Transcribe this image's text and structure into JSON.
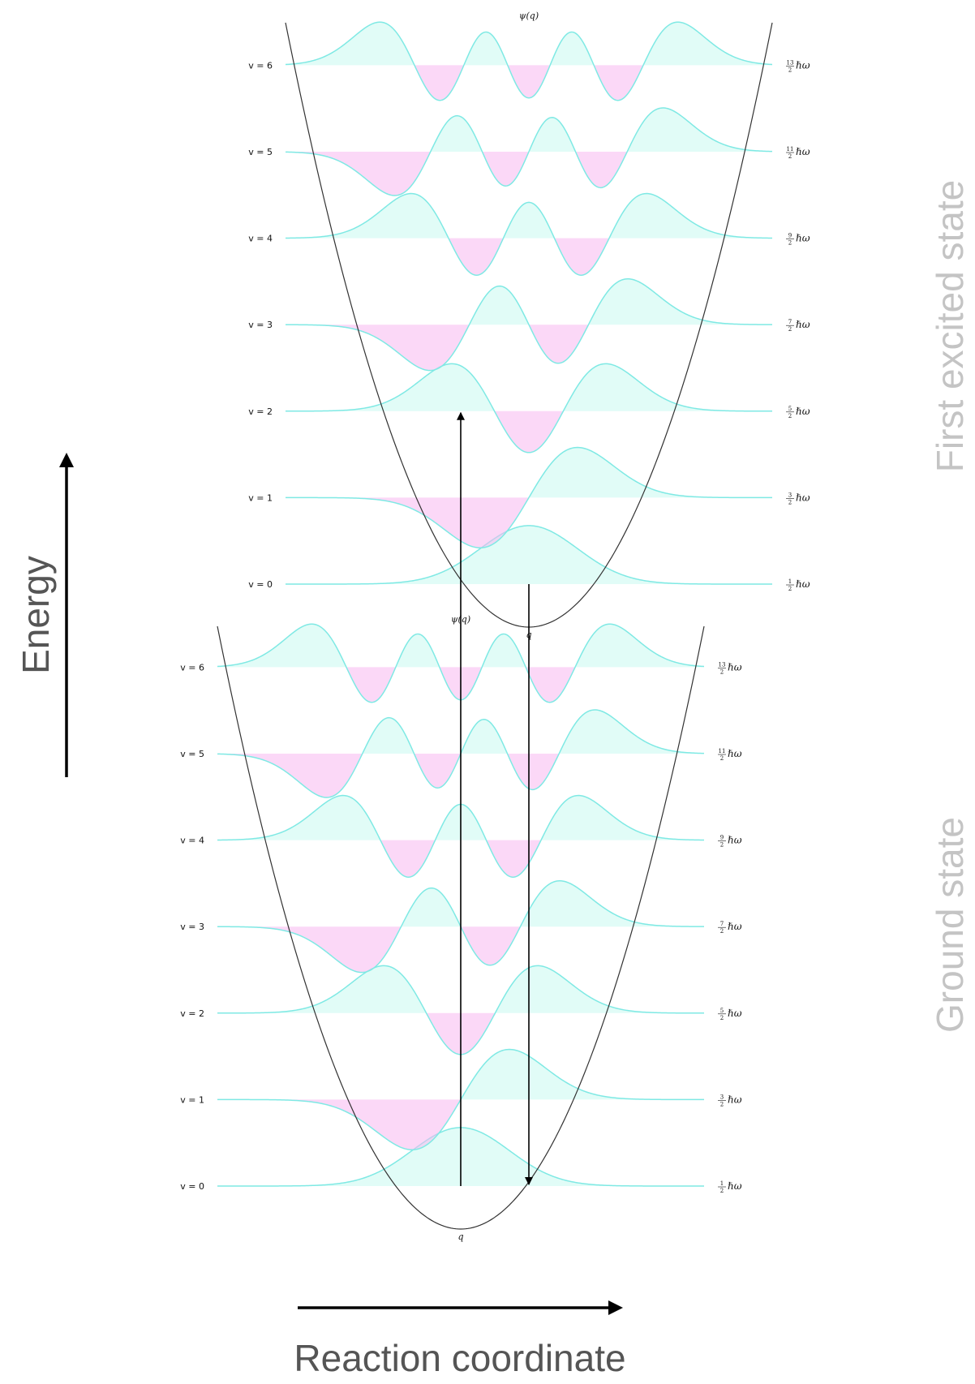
{
  "axes": {
    "energy_label": "Energy",
    "reaction_label": "Reaction coordinate"
  },
  "states": [
    {
      "id": "excited",
      "name": "First excited state",
      "psi_label": "ψ(q)",
      "q_label": "q",
      "levels": [
        {
          "v": 0,
          "label": "v = 0",
          "num": "1",
          "den": "2",
          "unit": "ℏω"
        },
        {
          "v": 1,
          "label": "v = 1",
          "num": "3",
          "den": "2",
          "unit": "ℏω"
        },
        {
          "v": 2,
          "label": "v = 2",
          "num": "5",
          "den": "2",
          "unit": "ℏω"
        },
        {
          "v": 3,
          "label": "v = 3",
          "num": "7",
          "den": "2",
          "unit": "ℏω"
        },
        {
          "v": 4,
          "label": "v = 4",
          "num": "9",
          "den": "2",
          "unit": "ℏω"
        },
        {
          "v": 5,
          "label": "v = 5",
          "num": "11",
          "den": "2",
          "unit": "ℏω"
        },
        {
          "v": 6,
          "label": "v = 6",
          "num": "13",
          "den": "2",
          "unit": "ℏω"
        }
      ]
    },
    {
      "id": "ground",
      "name": "Ground state",
      "psi_label": "ψ(q)",
      "q_label": "q",
      "levels": [
        {
          "v": 0,
          "label": "v = 0",
          "num": "1",
          "den": "2",
          "unit": "ℏω"
        },
        {
          "v": 1,
          "label": "v = 1",
          "num": "3",
          "den": "2",
          "unit": "ℏω"
        },
        {
          "v": 2,
          "label": "v = 2",
          "num": "5",
          "den": "2",
          "unit": "ℏω"
        },
        {
          "v": 3,
          "label": "v = 3",
          "num": "7",
          "den": "2",
          "unit": "ℏω"
        },
        {
          "v": 4,
          "label": "v = 4",
          "num": "9",
          "den": "2",
          "unit": "ℏω"
        },
        {
          "v": 5,
          "label": "v = 5",
          "num": "11",
          "den": "2",
          "unit": "ℏω"
        },
        {
          "v": 6,
          "label": "v = 6",
          "num": "13",
          "den": "2",
          "unit": "ℏω"
        }
      ]
    }
  ],
  "transitions": [
    {
      "from_state": "ground",
      "from_v": 0,
      "to_state": "excited",
      "to_v": 2,
      "type": "absorption"
    },
    {
      "from_state": "excited",
      "from_v": 0,
      "to_state": "ground",
      "to_v": 0,
      "type": "emission"
    }
  ],
  "colors": {
    "positive_lobe": "#9df4e4",
    "negative_lobe": "#f7b8f0",
    "wave_line": "#7fe9e4",
    "potential": "#333333",
    "arrow": "#000000",
    "side_text": "#c4c4c4",
    "axis_text": "#555555"
  }
}
